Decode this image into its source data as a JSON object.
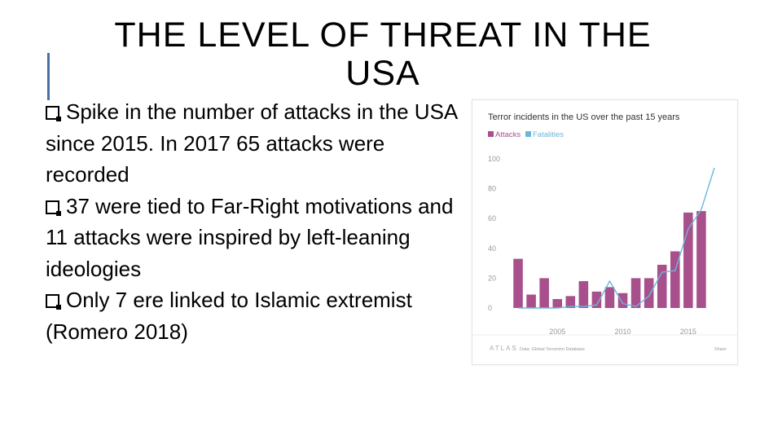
{
  "slide": {
    "title": "THE LEVEL OF THREAT IN THE USA",
    "bullets": [
      "Spike in the number of attacks in the USA since 2015. In 2017 65 attacks were recorded",
      "37 were tied to Far-Right motivations and 11 attacks were inspired by left-leaning ideologies",
      "Only 7 ere linked to Islamic extremist (Romero 2018)"
    ]
  },
  "chart_data": {
    "type": "bar",
    "title": "Terror incidents in the US over the past 15 years",
    "x": [
      2002,
      2003,
      2004,
      2005,
      2006,
      2007,
      2008,
      2009,
      2010,
      2011,
      2012,
      2013,
      2014,
      2015,
      2016,
      2017
    ],
    "series": [
      {
        "name": "Attacks",
        "kind": "bar",
        "color": "#a8508c",
        "values": [
          33,
          9,
          20,
          6,
          8,
          18,
          11,
          14,
          10,
          20,
          20,
          29,
          38,
          64,
          65,
          null
        ]
      },
      {
        "name": "Fatalities",
        "kind": "line",
        "color": "#6bb7dc",
        "values": [
          0,
          0,
          0,
          0,
          1,
          1,
          2,
          18,
          3,
          1,
          8,
          24,
          25,
          53,
          66,
          94
        ]
      }
    ],
    "xticks": [
      2005,
      2010,
      2015
    ],
    "yticks": [
      0,
      20,
      40,
      60,
      80,
      100
    ],
    "ylim": [
      0,
      100
    ],
    "grid": false,
    "legend": "top-left",
    "footer": {
      "brand": "ATLAS",
      "source": "Data: Global Terrorism Database",
      "share": "Share"
    }
  }
}
